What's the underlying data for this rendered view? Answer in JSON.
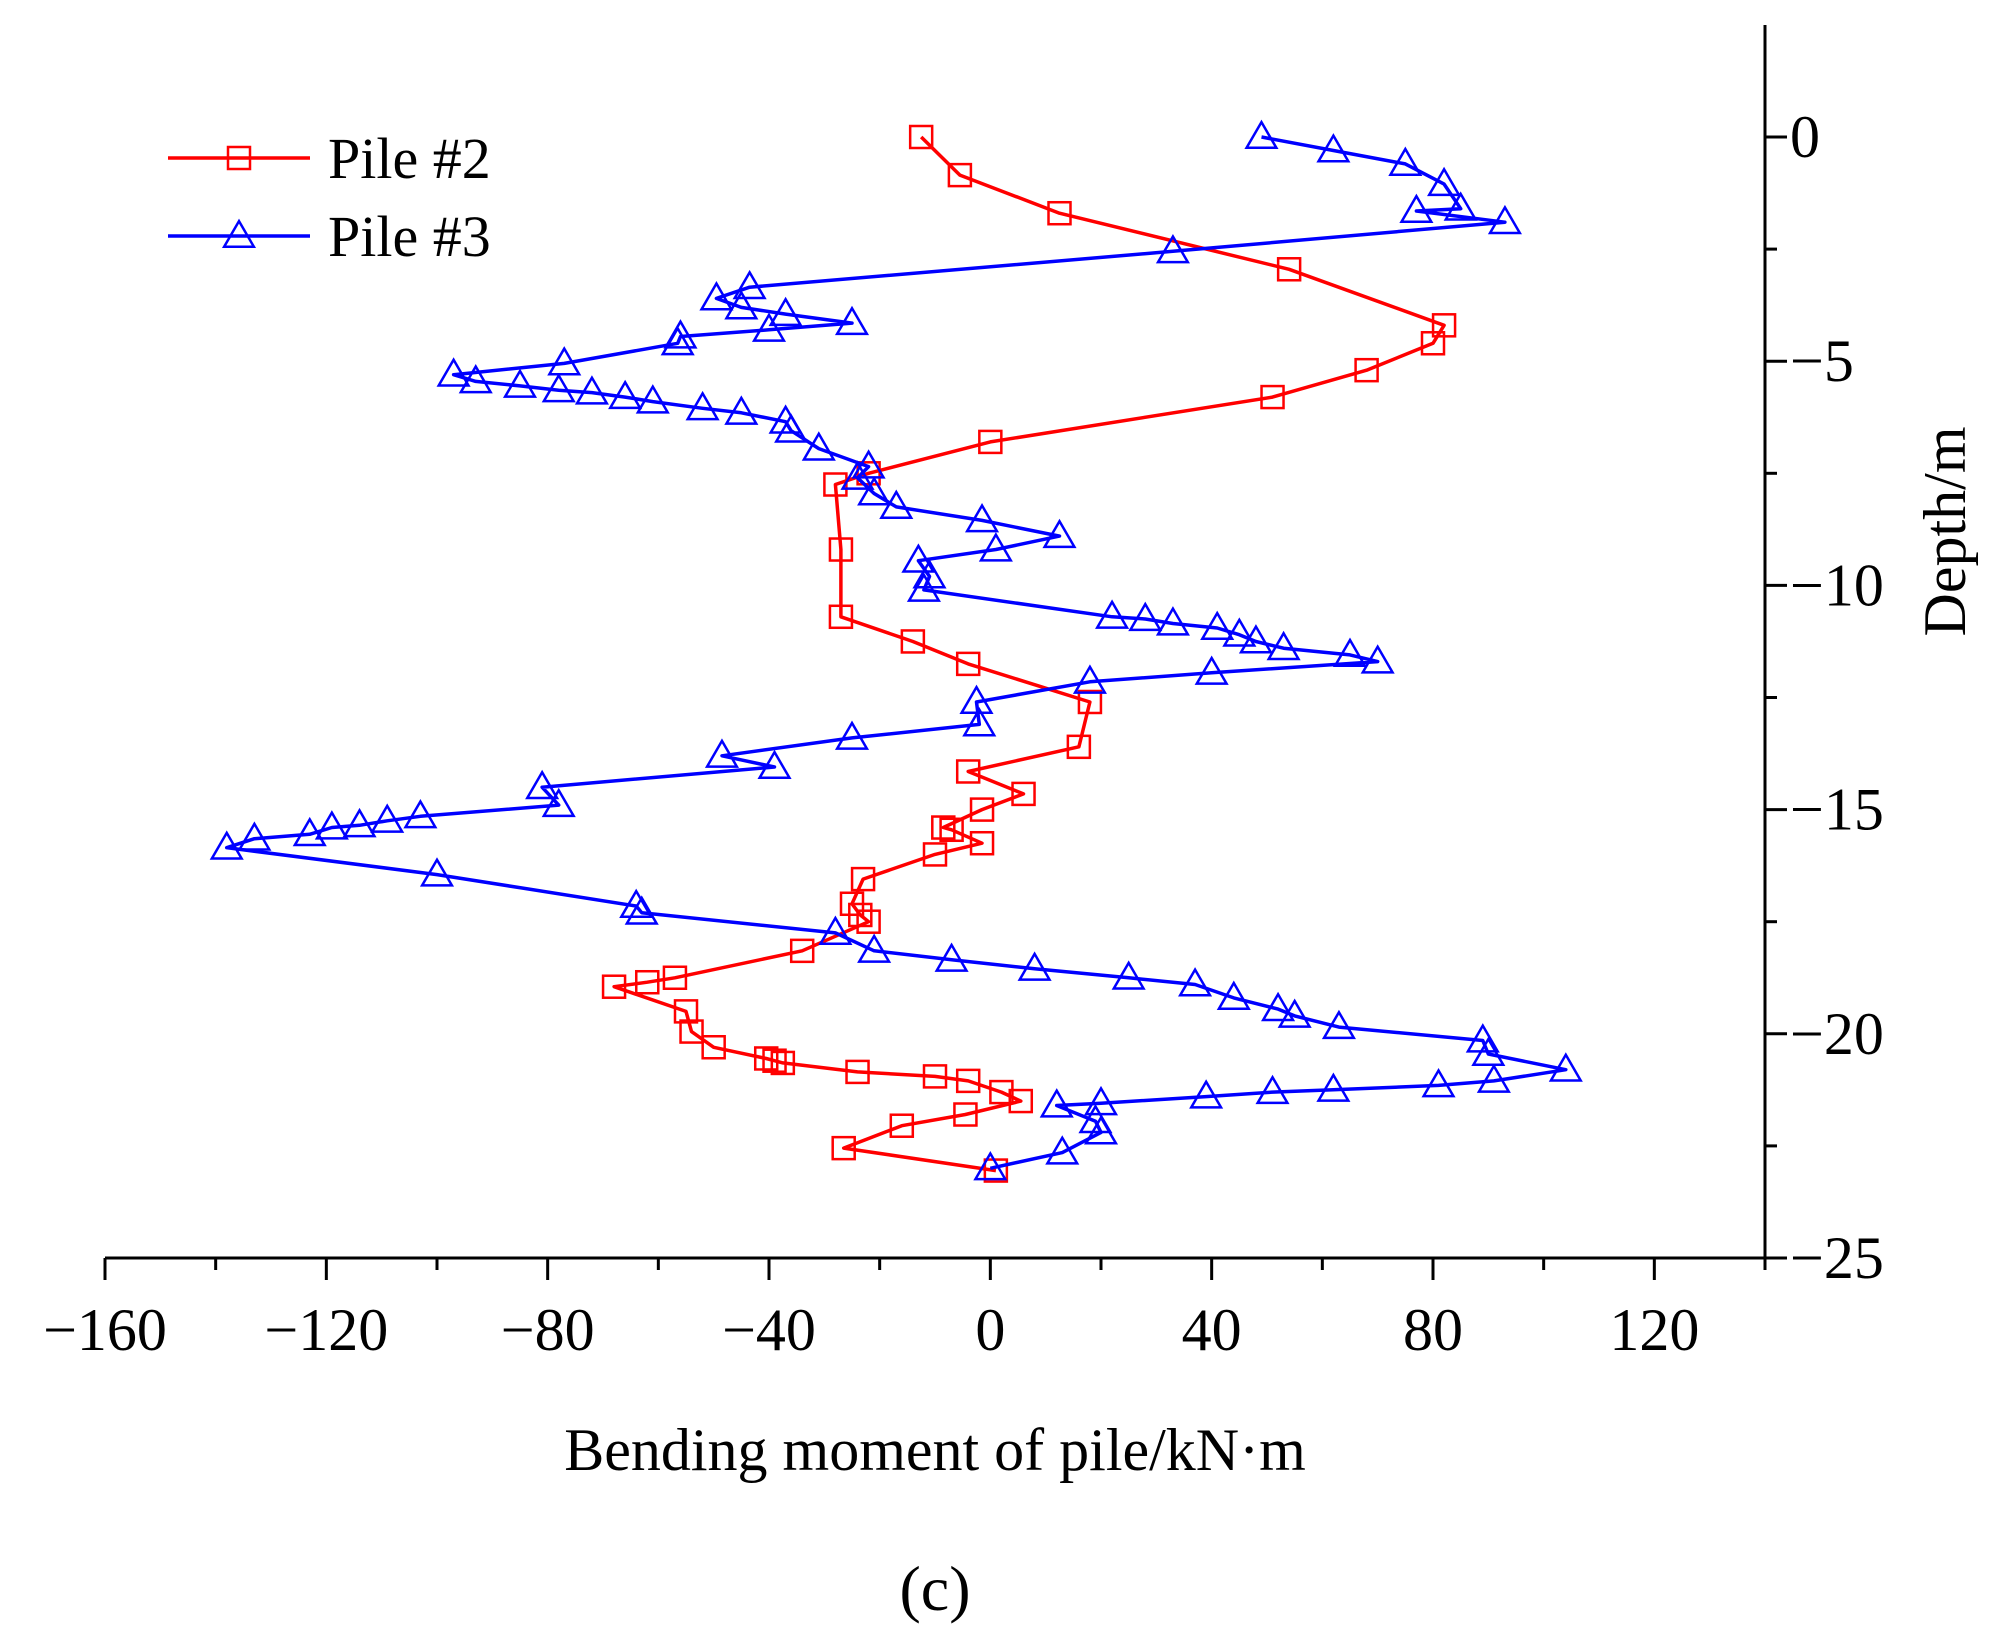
{
  "chart_data": {
    "type": "line",
    "title": "",
    "caption": "(c)",
    "xlabel": "Bending moment of pile/kN·m",
    "ylabel": "Depth/m",
    "xlim": [
      -160,
      140
    ],
    "ylim": [
      -25,
      2.5
    ],
    "x_ticks": [
      -160,
      -120,
      -80,
      -40,
      0,
      40,
      80,
      120
    ],
    "x_tick_labels": [
      "−160",
      "−120",
      "−80",
      "−40",
      "0",
      "40",
      "80",
      "120"
    ],
    "y_ticks": [
      0,
      -5,
      -10,
      -15,
      -20,
      -25
    ],
    "y_tick_labels": [
      "0",
      "−5",
      "−10",
      "−15",
      "−20",
      "−25"
    ],
    "legend_position": "top-left",
    "grid": false,
    "series": [
      {
        "name": "Pile #2",
        "color": "#ff0000",
        "marker": "square",
        "points": [
          [
            -12.5,
            0
          ],
          [
            -5.5,
            -0.85
          ],
          [
            12.5,
            -1.7
          ],
          [
            54,
            -2.95
          ],
          [
            82,
            -4.2
          ],
          [
            80,
            -4.6
          ],
          [
            68,
            -5.2
          ],
          [
            51,
            -5.8
          ],
          [
            0,
            -6.8
          ],
          [
            -22,
            -7.5
          ],
          [
            -28,
            -7.75
          ],
          [
            -27,
            -9.2
          ],
          [
            -27,
            -10.7
          ],
          [
            -14,
            -11.25
          ],
          [
            -4,
            -11.75
          ],
          [
            18,
            -12.6
          ],
          [
            16,
            -13.6
          ],
          [
            -4,
            -14.15
          ],
          [
            6,
            -14.65
          ],
          [
            -1.5,
            -15.0
          ],
          [
            -8.5,
            -15.4
          ],
          [
            -7,
            -15.45
          ],
          [
            -1.5,
            -15.75
          ],
          [
            -10,
            -16.0
          ],
          [
            -23,
            -16.55
          ],
          [
            -25,
            -17.1
          ],
          [
            -23.5,
            -17.35
          ],
          [
            -22,
            -17.5
          ],
          [
            -34,
            -18.15
          ],
          [
            -57,
            -18.75
          ],
          [
            -62,
            -18.85
          ],
          [
            -68,
            -18.95
          ],
          [
            -55,
            -19.5
          ],
          [
            -54,
            -19.95
          ],
          [
            -50,
            -20.3
          ],
          [
            -40.5,
            -20.55
          ],
          [
            -39,
            -20.6
          ],
          [
            -37.5,
            -20.65
          ],
          [
            -24,
            -20.85
          ],
          [
            -10,
            -20.95
          ],
          [
            -4,
            -21.05
          ],
          [
            2,
            -21.3
          ],
          [
            5.5,
            -21.5
          ],
          [
            -4.5,
            -21.8
          ],
          [
            -16,
            -22.05
          ],
          [
            -26.5,
            -22.55
          ],
          [
            1,
            -23.05
          ]
        ]
      },
      {
        "name": "Pile #3",
        "color": "#0000ff",
        "marker": "triangle",
        "points": [
          [
            49,
            0
          ],
          [
            62,
            -0.3
          ],
          [
            75,
            -0.6
          ],
          [
            82,
            -1.05
          ],
          [
            85,
            -1.6
          ],
          [
            77,
            -1.65
          ],
          [
            93,
            -1.9
          ],
          [
            33,
            -2.55
          ],
          [
            -43.5,
            -3.35
          ],
          [
            -49.5,
            -3.6
          ],
          [
            -45,
            -3.8
          ],
          [
            -37,
            -3.95
          ],
          [
            -25,
            -4.15
          ],
          [
            -40,
            -4.3
          ],
          [
            -56,
            -4.45
          ],
          [
            -56.5,
            -4.6
          ],
          [
            -77,
            -5.05
          ],
          [
            -97,
            -5.3
          ],
          [
            -93,
            -5.45
          ],
          [
            -85,
            -5.55
          ],
          [
            -78,
            -5.65
          ],
          [
            -72,
            -5.7
          ],
          [
            -66,
            -5.8
          ],
          [
            -61,
            -5.9
          ],
          [
            -52,
            -6.05
          ],
          [
            -45,
            -6.15
          ],
          [
            -37,
            -6.35
          ],
          [
            -36,
            -6.55
          ],
          [
            -31,
            -6.95
          ],
          [
            -22,
            -7.35
          ],
          [
            -24,
            -7.6
          ],
          [
            -21,
            -7.95
          ],
          [
            -17,
            -8.25
          ],
          [
            -1.5,
            -8.55
          ],
          [
            12.5,
            -8.9
          ],
          [
            1,
            -9.2
          ],
          [
            -13,
            -9.45
          ],
          [
            -11,
            -9.8
          ],
          [
            -12,
            -10.1
          ],
          [
            22,
            -10.7
          ],
          [
            28,
            -10.75
          ],
          [
            33,
            -10.85
          ],
          [
            41,
            -10.95
          ],
          [
            45,
            -11.1
          ],
          [
            48,
            -11.25
          ],
          [
            53,
            -11.4
          ],
          [
            65,
            -11.55
          ],
          [
            70,
            -11.7
          ],
          [
            40,
            -11.95
          ],
          [
            18,
            -12.15
          ],
          [
            -2.5,
            -12.6
          ],
          [
            -2,
            -13.1
          ],
          [
            -25,
            -13.4
          ],
          [
            -48.5,
            -13.8
          ],
          [
            -39,
            -14.05
          ],
          [
            -81,
            -14.5
          ],
          [
            -78,
            -14.9
          ],
          [
            -103,
            -15.15
          ],
          [
            -109,
            -15.25
          ],
          [
            -114,
            -15.35
          ],
          [
            -119,
            -15.4
          ],
          [
            -123,
            -15.55
          ],
          [
            -133,
            -15.65
          ],
          [
            -138,
            -15.85
          ],
          [
            -100,
            -16.45
          ],
          [
            -64,
            -17.15
          ],
          [
            -63,
            -17.3
          ],
          [
            -28,
            -17.75
          ],
          [
            -21,
            -18.15
          ],
          [
            -7,
            -18.35
          ],
          [
            8,
            -18.55
          ],
          [
            25,
            -18.75
          ],
          [
            37,
            -18.9
          ],
          [
            44,
            -19.2
          ],
          [
            52,
            -19.45
          ],
          [
            55,
            -19.6
          ],
          [
            63,
            -19.85
          ],
          [
            89,
            -20.15
          ],
          [
            90,
            -20.45
          ],
          [
            104,
            -20.8
          ],
          [
            91,
            -21.05
          ],
          [
            81,
            -21.15
          ],
          [
            62,
            -21.25
          ],
          [
            51,
            -21.3
          ],
          [
            39,
            -21.4
          ],
          [
            20,
            -21.55
          ],
          [
            12,
            -21.6
          ],
          [
            19,
            -21.95
          ],
          [
            20,
            -22.2
          ],
          [
            13,
            -22.65
          ],
          [
            0,
            -23.0
          ]
        ]
      }
    ]
  }
}
